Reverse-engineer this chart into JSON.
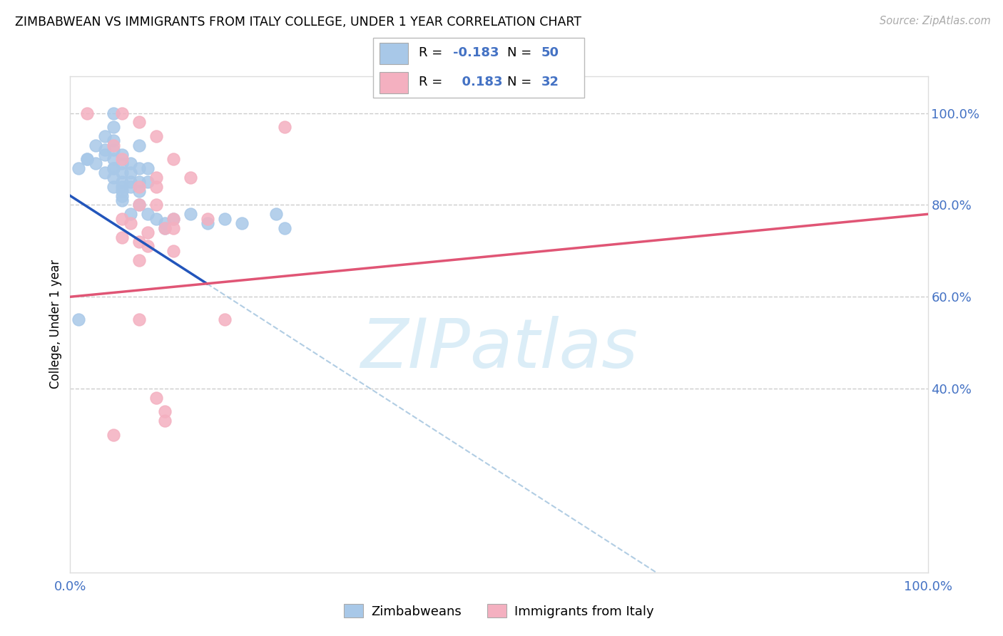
{
  "title": "ZIMBABWEAN VS IMMIGRANTS FROM ITALY COLLEGE, UNDER 1 YEAR CORRELATION CHART",
  "source": "Source: ZipAtlas.com",
  "ylabel": "College, Under 1 year",
  "legend_label1": "Zimbabweans",
  "legend_label2": "Immigrants from Italy",
  "R1": "-0.183",
  "N1": "50",
  "R2": "0.183",
  "N2": "32",
  "blue_color": "#a8c8e8",
  "pink_color": "#f4b0c0",
  "blue_line_color": "#2255bb",
  "pink_line_color": "#e05575",
  "dashed_color": "#90b8d8",
  "watermark_color": "#d0e8f5",
  "grid_color": "#cccccc",
  "axis_label_color": "#4472c4",
  "blue_x": [
    1,
    2,
    3,
    3,
    4,
    4,
    4,
    5,
    5,
    5,
    5,
    5,
    5,
    5,
    6,
    6,
    6,
    6,
    6,
    6,
    6,
    7,
    7,
    7,
    8,
    8,
    8,
    8,
    8,
    9,
    9,
    10,
    11,
    11,
    12,
    14,
    16,
    18,
    20,
    1,
    2,
    4,
    5,
    6,
    7,
    7,
    9,
    24,
    25,
    5
  ],
  "blue_y": [
    88,
    90,
    93,
    89,
    95,
    92,
    91,
    97,
    94,
    92,
    90,
    88,
    86,
    84,
    91,
    89,
    87,
    85,
    84,
    83,
    81,
    89,
    87,
    85,
    93,
    88,
    85,
    83,
    80,
    88,
    85,
    77,
    76,
    75,
    77,
    78,
    76,
    77,
    76,
    55,
    90,
    87,
    88,
    82,
    84,
    78,
    78,
    78,
    75,
    100
  ],
  "pink_x": [
    6,
    8,
    10,
    5,
    12,
    6,
    10,
    14,
    8,
    10,
    8,
    10,
    6,
    12,
    16,
    7,
    12,
    11,
    9,
    6,
    8,
    9,
    12,
    8,
    8,
    18,
    10,
    11,
    11,
    5,
    2,
    25
  ],
  "pink_y": [
    100,
    98,
    95,
    93,
    90,
    90,
    86,
    86,
    84,
    84,
    80,
    80,
    77,
    77,
    77,
    76,
    75,
    75,
    74,
    73,
    72,
    71,
    70,
    68,
    55,
    55,
    38,
    35,
    33,
    30,
    100,
    97
  ],
  "xmin": 0,
  "xmax": 100,
  "ymin": 0,
  "ymax": 108,
  "yticks": [
    40,
    60,
    80,
    100
  ],
  "ytick_labels": [
    "40.0%",
    "60.0%",
    "80.0%",
    "100.0%"
  ],
  "blue_intercept": 82,
  "blue_slope": -1.2,
  "blue_dash_start_x": 18,
  "pink_intercept": 60,
  "pink_slope": 0.18
}
